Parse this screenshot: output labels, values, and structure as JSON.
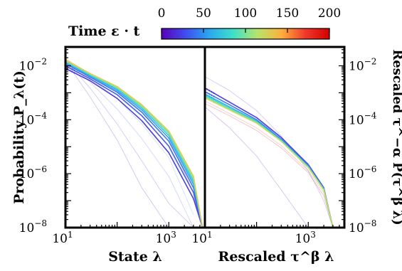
{
  "chart_data": [
    {
      "type": "line",
      "panel": "left",
      "xlabel": "State λ",
      "ylabel": "Probability P_λ(t)",
      "xscale": "log",
      "yscale": "log",
      "xlim": [
        10,
        5000
      ],
      "ylim": [
        1e-08,
        0.05
      ],
      "x_ticks": [
        {
          "value": 10,
          "base": "10",
          "exp": "1"
        },
        {
          "value": 1000,
          "base": "10",
          "exp": "3"
        }
      ],
      "y_ticks": [
        {
          "value": 0.01,
          "base": "10",
          "exp": "−2"
        },
        {
          "value": 0.0001,
          "base": "10",
          "exp": "−4"
        },
        {
          "value": 1e-06,
          "base": "10",
          "exp": "−6"
        },
        {
          "value": 1e-08,
          "base": "10",
          "exp": "−8"
        }
      ],
      "series": [
        {
          "t": 5,
          "faint": true,
          "x": [
            10,
            30,
            100,
            300,
            1000,
            3000
          ],
          "y": [
            0.015,
            0.0007,
            1.8e-05,
            3e-07,
            1e-08,
            1e-08
          ]
        },
        {
          "t": 15,
          "faint": true,
          "x": [
            10,
            30,
            100,
            300,
            1000,
            3000
          ],
          "y": [
            0.016,
            0.0015,
            7e-05,
            3e-06,
            8e-08,
            1e-08
          ]
        },
        {
          "t": 30,
          "faint": true,
          "x": [
            10,
            30,
            100,
            300,
            1000,
            3000
          ],
          "y": [
            0.016,
            0.0025,
            0.00025,
            2e-05,
            8e-07,
            1e-08
          ]
        },
        {
          "t": 50,
          "faint": true,
          "x": [
            10,
            30,
            100,
            300,
            1000,
            3000
          ],
          "y": [
            0.017,
            0.0035,
            0.0006,
            7e-05,
            4e-06,
            3e-08
          ]
        },
        {
          "t": 80,
          "faint": true,
          "x": [
            10,
            30,
            100,
            300,
            1000,
            3000
          ],
          "y": [
            0.018,
            0.0045,
            0.001,
            0.00015,
            1e-05,
            1e-07
          ]
        },
        {
          "t": 120,
          "faint": true,
          "x": [
            10,
            30,
            100,
            300,
            1000,
            3000
          ],
          "y": [
            0.018,
            0.005,
            0.0013,
            0.00022,
            1.7e-05,
            2e-07
          ]
        },
        {
          "t": 170,
          "faint": true,
          "x": [
            10,
            30,
            100,
            300,
            1000,
            3000
          ],
          "y": [
            0.018,
            0.0052,
            0.0014,
            0.00025,
            2e-05,
            2e-07
          ]
        },
        {
          "t": 20,
          "faint": false,
          "x": [
            10,
            30,
            100,
            300,
            1000,
            3000,
            4500
          ],
          "y": [
            0.008,
            0.0028,
            0.00062,
            9.2e-05,
            6e-06,
            1.2e-07,
            1e-08
          ]
        },
        {
          "t": 30,
          "faint": false,
          "x": [
            10,
            30,
            100,
            300,
            1000,
            3000,
            4500
          ],
          "y": [
            0.01,
            0.0033,
            0.00085,
            0.00014,
            1.05e-05,
            2e-07,
            1e-08
          ]
        },
        {
          "t": 40,
          "faint": false,
          "x": [
            10,
            30,
            100,
            300,
            1000,
            3000,
            4500
          ],
          "y": [
            0.012,
            0.0038,
            0.00105,
            0.00019,
            1.6e-05,
            3e-07,
            1e-08
          ]
        },
        {
          "t": 55,
          "faint": false,
          "x": [
            10,
            30,
            100,
            300,
            1000,
            3000,
            4500
          ],
          "y": [
            0.013,
            0.0042,
            0.0012,
            0.00023,
            2.1e-05,
            4e-07,
            1e-08
          ]
        },
        {
          "t": 70,
          "faint": false,
          "x": [
            10,
            30,
            100,
            300,
            1000,
            3000,
            4500
          ],
          "y": [
            0.014,
            0.0045,
            0.00135,
            0.00027,
            2.6e-05,
            5e-07,
            1e-08
          ]
        },
        {
          "t": 90,
          "faint": false,
          "x": [
            10,
            30,
            100,
            300,
            1000,
            3000,
            4500
          ],
          "y": [
            0.015,
            0.0048,
            0.0015,
            0.00031,
            3.1e-05,
            6e-07,
            1e-08
          ]
        },
        {
          "t": 110,
          "faint": false,
          "x": [
            10,
            30,
            100,
            300,
            1000,
            3000,
            4500
          ],
          "y": [
            0.016,
            0.005,
            0.0016,
            0.00034,
            3.5e-05,
            7e-07,
            1e-08
          ]
        },
        {
          "t": 130,
          "faint": false,
          "x": [
            10,
            30,
            100,
            300,
            1000,
            3000,
            4500
          ],
          "y": [
            0.016,
            0.0052,
            0.0017,
            0.00036,
            3.8e-05,
            8e-07,
            1e-08
          ]
        }
      ]
    },
    {
      "type": "line",
      "panel": "right",
      "xlabel": "Rescaled τ^β λ",
      "ylabel": "Rescaled τ^−α P(τ^β λ)",
      "xscale": "log",
      "yscale": "log",
      "xlim": [
        10,
        5000
      ],
      "ylim": [
        1e-08,
        0.05
      ],
      "x_ticks": [
        {
          "value": 10,
          "base": "10",
          "exp": "1"
        },
        {
          "value": 1000,
          "base": "10",
          "exp": "3"
        }
      ],
      "y_ticks": [
        {
          "value": 0.01,
          "base": "10",
          "exp": "−2"
        },
        {
          "value": 0.0001,
          "base": "10",
          "exp": "−4"
        },
        {
          "value": 1e-06,
          "base": "10",
          "exp": "−6"
        },
        {
          "value": 1e-08,
          "base": "10",
          "exp": "−8"
        }
      ],
      "series": [
        {
          "t": 5,
          "faint": true,
          "x": [
            10,
            30,
            100,
            300,
            1000,
            2000,
            3000
          ],
          "y": [
            0.0003,
            5e-05,
            4.5e-06,
            2.5e-07,
            1e-08,
            1e-08,
            1e-08
          ]
        },
        {
          "t": 15,
          "faint": true,
          "x": [
            10,
            30,
            100,
            300,
            1000,
            2000,
            3000
          ],
          "y": [
            0.004,
            0.0012,
            0.00022,
            2.5e-05,
            1.3e-06,
            1e-07,
            1e-08
          ]
        },
        {
          "t": 180,
          "faint": true,
          "x": [
            10,
            30,
            100,
            300,
            1000,
            2000,
            3000
          ],
          "y": [
            0.0005,
            0.00017,
            5e-05,
            1.1e-05,
            1.3e-06,
            2e-07,
            1e-08
          ]
        },
        {
          "t": 200,
          "faint": true,
          "x": [
            10,
            30,
            100,
            300,
            1000,
            2000,
            3000
          ],
          "y": [
            0.0004,
            0.00014,
            4e-05,
            9e-06,
            1.1e-06,
            1.5e-07,
            1e-08
          ]
        },
        {
          "t": 20,
          "faint": false,
          "x": [
            10,
            30,
            100,
            300,
            1000,
            2000,
            3000
          ],
          "y": [
            0.0015,
            0.00045,
            0.00012,
            2.2e-05,
            2.2e-06,
            3e-07,
            1e-08
          ]
        },
        {
          "t": 40,
          "faint": false,
          "x": [
            10,
            30,
            100,
            300,
            1000,
            2000,
            3000
          ],
          "y": [
            0.0011,
            0.00036,
            0.0001,
            1.9e-05,
            2e-06,
            2.8e-07,
            1e-08
          ]
        },
        {
          "t": 60,
          "faint": false,
          "x": [
            10,
            30,
            100,
            300,
            1000,
            2000,
            3000
          ],
          "y": [
            0.0009,
            0.0003,
            9e-05,
            1.8e-05,
            1.9e-06,
            2.7e-07,
            1e-08
          ]
        },
        {
          "t": 80,
          "faint": false,
          "x": [
            10,
            30,
            100,
            300,
            1000,
            2000,
            3000
          ],
          "y": [
            0.0008,
            0.00027,
            8.5e-05,
            1.7e-05,
            1.8e-06,
            2.6e-07,
            1e-08
          ]
        },
        {
          "t": 100,
          "faint": false,
          "x": [
            10,
            30,
            100,
            300,
            1000,
            2000,
            3000
          ],
          "y": [
            0.0007,
            0.00025,
            8e-05,
            1.6e-05,
            1.7e-06,
            2.5e-07,
            1e-08
          ]
        },
        {
          "t": 120,
          "faint": false,
          "x": [
            10,
            30,
            100,
            300,
            1000,
            2000,
            3000
          ],
          "y": [
            0.00065,
            0.00023,
            7.5e-05,
            1.6e-05,
            1.7e-06,
            2.5e-07,
            1e-08
          ]
        }
      ]
    }
  ],
  "colorbar": {
    "label": "Time ε · t",
    "ticks": [
      "0",
      "50",
      "100",
      "150",
      "200"
    ],
    "range": [
      0,
      200
    ],
    "colors": [
      "#5a00b5",
      "#3f4cf0",
      "#2aa8f0",
      "#3fe0c8",
      "#b7e56a",
      "#fdb03c",
      "#f0382a",
      "#d00000"
    ]
  }
}
